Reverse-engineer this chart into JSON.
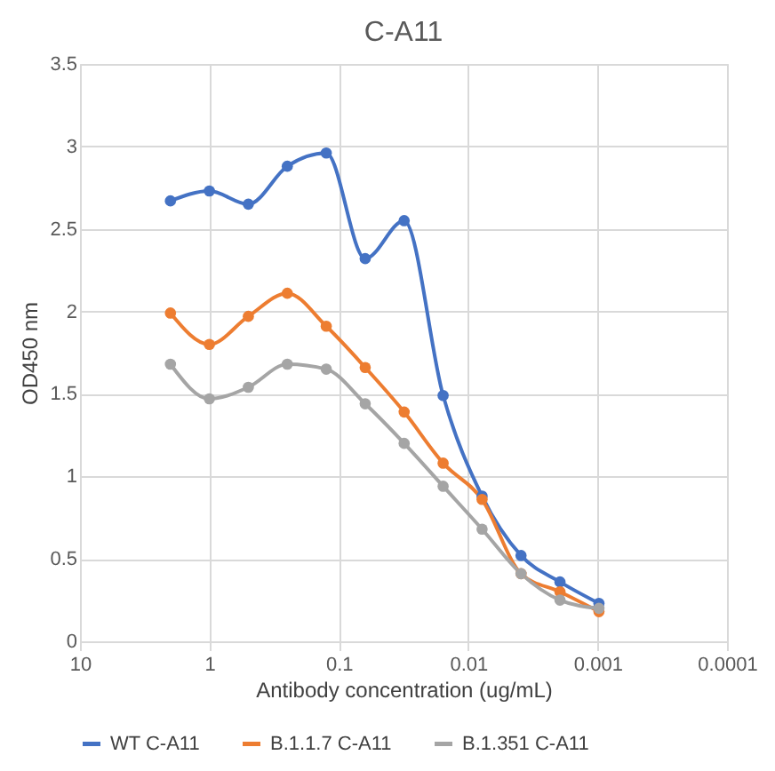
{
  "chart_data": {
    "type": "line",
    "title": "C-A11",
    "xlabel": "Antibody concentration (ug/mL)",
    "ylabel": "OD450 nm",
    "x": [
      2,
      1,
      0.5,
      0.25,
      0.125,
      0.0625,
      0.03125,
      0.015625,
      0.0078125,
      0.00390625,
      0.001953125,
      0.0009765625
    ],
    "series": [
      {
        "name": "WT C-A11",
        "color": "#4472c4",
        "values": [
          2.67,
          2.73,
          2.65,
          2.88,
          2.96,
          2.32,
          2.55,
          1.49,
          0.88,
          0.52,
          0.36,
          0.23
        ]
      },
      {
        "name": "B.1.1.7 C-A11",
        "color": "#ed7d31",
        "values": [
          1.99,
          1.8,
          1.97,
          2.11,
          1.91,
          1.66,
          1.39,
          1.08,
          0.86,
          0.41,
          0.3,
          0.18
        ]
      },
      {
        "name": "B.1.351 C-A11",
        "color": "#a5a5a5",
        "values": [
          1.68,
          1.47,
          1.54,
          1.68,
          1.65,
          1.44,
          1.2,
          0.94,
          0.68,
          0.41,
          0.25,
          0.2
        ]
      }
    ],
    "log": "x",
    "xlim": [
      10,
      0.0001
    ],
    "xticks": [
      10,
      1,
      0.1,
      0.01,
      0.001,
      0.0001
    ],
    "ylim": [
      0,
      3.5
    ],
    "yticks": [
      0,
      0.5,
      1,
      1.5,
      2,
      2.5,
      3,
      3.5
    ],
    "grid": true,
    "legend": "bottom",
    "marker": "circle",
    "line_style": "solid"
  }
}
